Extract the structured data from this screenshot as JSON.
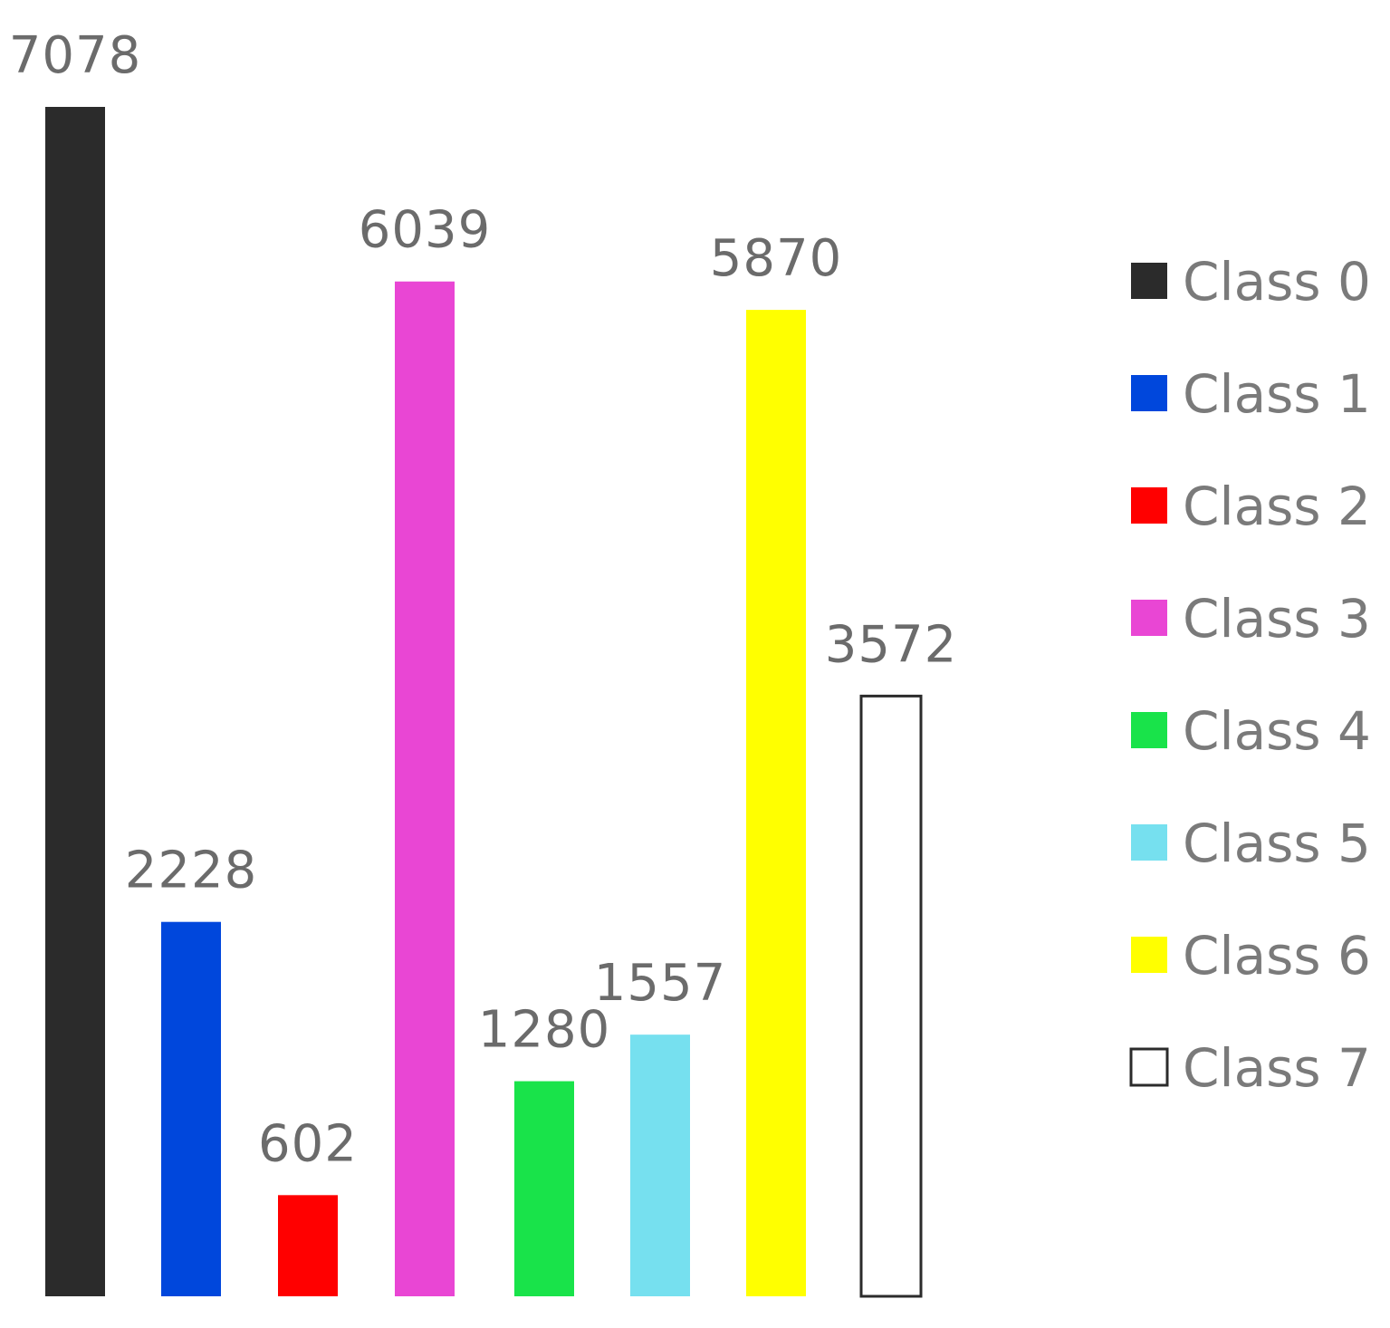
{
  "chart_data": {
    "type": "bar",
    "categories": [
      "Class 0",
      "Class 1",
      "Class 2",
      "Class 3",
      "Class 4",
      "Class 5",
      "Class 6",
      "Class 7"
    ],
    "values": [
      7078,
      2228,
      602,
      6039,
      1280,
      1557,
      5870,
      3572
    ],
    "value_labels": [
      "7078",
      "2228",
      "602",
      "6039",
      "1280",
      "1557",
      "5870",
      "3572"
    ],
    "colors": [
      "#2b2b2b",
      "#0047dc",
      "#ff0000",
      "#e946d4",
      "#19e34a",
      "#76e0ef",
      "#ffff00",
      "#ffffff"
    ],
    "outline_color": "#2b2b2b",
    "ylim": [
      0,
      7078
    ],
    "grid": false,
    "legend": {
      "placement": "right",
      "entries": [
        "Class 0",
        "Class 1",
        "Class 2",
        "Class 3",
        "Class 4",
        "Class 5",
        "Class 6",
        "Class 7"
      ]
    }
  }
}
